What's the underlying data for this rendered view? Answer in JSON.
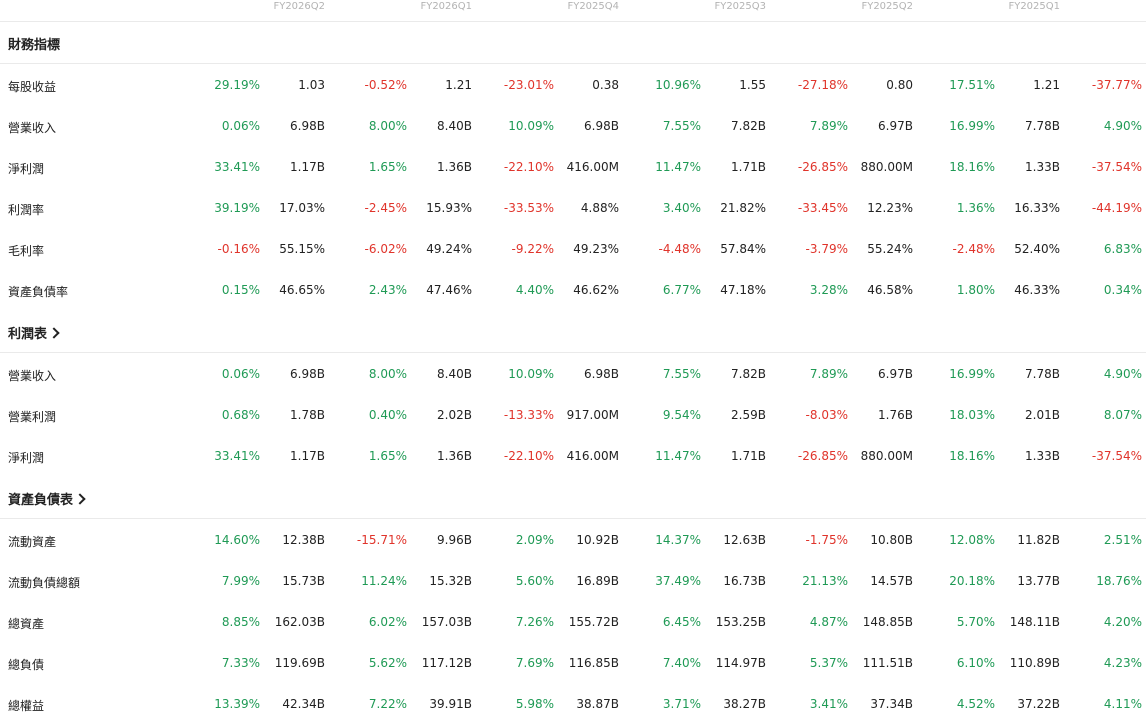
{
  "periods": [
    "FY2026Q2",
    "FY2026Q1",
    "FY2025Q4",
    "FY2025Q3",
    "FY2025Q2",
    "FY2025Q1"
  ],
  "sections": [
    {
      "title": "財務指標",
      "link": false,
      "rows": [
        {
          "label": "每股收益",
          "cells": [
            {
              "pct": "29.19%",
              "val": "1.03"
            },
            {
              "pct": "-0.52%",
              "val": "1.21"
            },
            {
              "pct": "-23.01%",
              "val": "0.38"
            },
            {
              "pct": "10.96%",
              "val": "1.55"
            },
            {
              "pct": "-27.18%",
              "val": "0.80"
            },
            {
              "pct": "17.51%",
              "val": "1.21"
            },
            {
              "pct": "-37.77%",
              "val": ""
            }
          ]
        },
        {
          "label": "營業收入",
          "cells": [
            {
              "pct": "0.06%",
              "val": "6.98B"
            },
            {
              "pct": "8.00%",
              "val": "8.40B"
            },
            {
              "pct": "10.09%",
              "val": "6.98B"
            },
            {
              "pct": "7.55%",
              "val": "7.82B"
            },
            {
              "pct": "7.89%",
              "val": "6.97B"
            },
            {
              "pct": "16.99%",
              "val": "7.78B"
            },
            {
              "pct": "4.90%",
              "val": ""
            }
          ]
        },
        {
          "label": "淨利潤",
          "cells": [
            {
              "pct": "33.41%",
              "val": "1.17B"
            },
            {
              "pct": "1.65%",
              "val": "1.36B"
            },
            {
              "pct": "-22.10%",
              "val": "416.00M"
            },
            {
              "pct": "11.47%",
              "val": "1.71B"
            },
            {
              "pct": "-26.85%",
              "val": "880.00M"
            },
            {
              "pct": "18.16%",
              "val": "1.33B"
            },
            {
              "pct": "-37.54%",
              "val": ""
            }
          ]
        },
        {
          "label": "利潤率",
          "cells": [
            {
              "pct": "39.19%",
              "val": "17.03%"
            },
            {
              "pct": "-2.45%",
              "val": "15.93%"
            },
            {
              "pct": "-33.53%",
              "val": "4.88%"
            },
            {
              "pct": "3.40%",
              "val": "21.82%"
            },
            {
              "pct": "-33.45%",
              "val": "12.23%"
            },
            {
              "pct": "1.36%",
              "val": "16.33%"
            },
            {
              "pct": "-44.19%",
              "val": ""
            }
          ]
        },
        {
          "label": "毛利率",
          "cells": [
            {
              "pct": "-0.16%",
              "val": "55.15%"
            },
            {
              "pct": "-6.02%",
              "val": "49.24%"
            },
            {
              "pct": "-9.22%",
              "val": "49.23%"
            },
            {
              "pct": "-4.48%",
              "val": "57.84%"
            },
            {
              "pct": "-3.79%",
              "val": "55.24%"
            },
            {
              "pct": "-2.48%",
              "val": "52.40%"
            },
            {
              "pct": "6.83%",
              "val": ""
            }
          ]
        },
        {
          "label": "資產負債率",
          "cells": [
            {
              "pct": "0.15%",
              "val": "46.65%"
            },
            {
              "pct": "2.43%",
              "val": "47.46%"
            },
            {
              "pct": "4.40%",
              "val": "46.62%"
            },
            {
              "pct": "6.77%",
              "val": "47.18%"
            },
            {
              "pct": "3.28%",
              "val": "46.58%"
            },
            {
              "pct": "1.80%",
              "val": "46.33%"
            },
            {
              "pct": "0.34%",
              "val": ""
            }
          ]
        }
      ]
    },
    {
      "title": "利潤表",
      "link": true,
      "rows": [
        {
          "label": "營業收入",
          "cells": [
            {
              "pct": "0.06%",
              "val": "6.98B"
            },
            {
              "pct": "8.00%",
              "val": "8.40B"
            },
            {
              "pct": "10.09%",
              "val": "6.98B"
            },
            {
              "pct": "7.55%",
              "val": "7.82B"
            },
            {
              "pct": "7.89%",
              "val": "6.97B"
            },
            {
              "pct": "16.99%",
              "val": "7.78B"
            },
            {
              "pct": "4.90%",
              "val": ""
            }
          ]
        },
        {
          "label": "營業利潤",
          "cells": [
            {
              "pct": "0.68%",
              "val": "1.78B"
            },
            {
              "pct": "0.40%",
              "val": "2.02B"
            },
            {
              "pct": "-13.33%",
              "val": "917.00M"
            },
            {
              "pct": "9.54%",
              "val": "2.59B"
            },
            {
              "pct": "-8.03%",
              "val": "1.76B"
            },
            {
              "pct": "18.03%",
              "val": "2.01B"
            },
            {
              "pct": "8.07%",
              "val": ""
            }
          ]
        },
        {
          "label": "淨利潤",
          "cells": [
            {
              "pct": "33.41%",
              "val": "1.17B"
            },
            {
              "pct": "1.65%",
              "val": "1.36B"
            },
            {
              "pct": "-22.10%",
              "val": "416.00M"
            },
            {
              "pct": "11.47%",
              "val": "1.71B"
            },
            {
              "pct": "-26.85%",
              "val": "880.00M"
            },
            {
              "pct": "18.16%",
              "val": "1.33B"
            },
            {
              "pct": "-37.54%",
              "val": ""
            }
          ]
        }
      ]
    },
    {
      "title": "資產負債表",
      "link": true,
      "rows": [
        {
          "label": "流動資產",
          "cells": [
            {
              "pct": "14.60%",
              "val": "12.38B"
            },
            {
              "pct": "-15.71%",
              "val": "9.96B"
            },
            {
              "pct": "2.09%",
              "val": "10.92B"
            },
            {
              "pct": "14.37%",
              "val": "12.63B"
            },
            {
              "pct": "-1.75%",
              "val": "10.80B"
            },
            {
              "pct": "12.08%",
              "val": "11.82B"
            },
            {
              "pct": "2.51%",
              "val": ""
            }
          ]
        },
        {
          "label": "流動負債總額",
          "cells": [
            {
              "pct": "7.99%",
              "val": "15.73B"
            },
            {
              "pct": "11.24%",
              "val": "15.32B"
            },
            {
              "pct": "5.60%",
              "val": "16.89B"
            },
            {
              "pct": "37.49%",
              "val": "16.73B"
            },
            {
              "pct": "21.13%",
              "val": "14.57B"
            },
            {
              "pct": "20.18%",
              "val": "13.77B"
            },
            {
              "pct": "18.76%",
              "val": ""
            }
          ]
        },
        {
          "label": "總資產",
          "cells": [
            {
              "pct": "8.85%",
              "val": "162.03B"
            },
            {
              "pct": "6.02%",
              "val": "157.03B"
            },
            {
              "pct": "7.26%",
              "val": "155.72B"
            },
            {
              "pct": "6.45%",
              "val": "153.25B"
            },
            {
              "pct": "4.87%",
              "val": "148.85B"
            },
            {
              "pct": "5.70%",
              "val": "148.11B"
            },
            {
              "pct": "4.20%",
              "val": ""
            }
          ]
        },
        {
          "label": "總負債",
          "cells": [
            {
              "pct": "7.33%",
              "val": "119.69B"
            },
            {
              "pct": "5.62%",
              "val": "117.12B"
            },
            {
              "pct": "7.69%",
              "val": "116.85B"
            },
            {
              "pct": "7.40%",
              "val": "114.97B"
            },
            {
              "pct": "5.37%",
              "val": "111.51B"
            },
            {
              "pct": "6.10%",
              "val": "110.89B"
            },
            {
              "pct": "4.23%",
              "val": ""
            }
          ]
        },
        {
          "label": "總權益",
          "cells": [
            {
              "pct": "13.39%",
              "val": "42.34B"
            },
            {
              "pct": "7.22%",
              "val": "39.91B"
            },
            {
              "pct": "5.98%",
              "val": "38.87B"
            },
            {
              "pct": "3.71%",
              "val": "38.27B"
            },
            {
              "pct": "3.41%",
              "val": "37.34B"
            },
            {
              "pct": "4.52%",
              "val": "37.22B"
            },
            {
              "pct": "4.11%",
              "val": ""
            }
          ]
        }
      ]
    }
  ],
  "colors": {
    "up": "#1f9a55",
    "down": "#e0342b",
    "text": "#222222",
    "header": "#b3b3b3"
  }
}
